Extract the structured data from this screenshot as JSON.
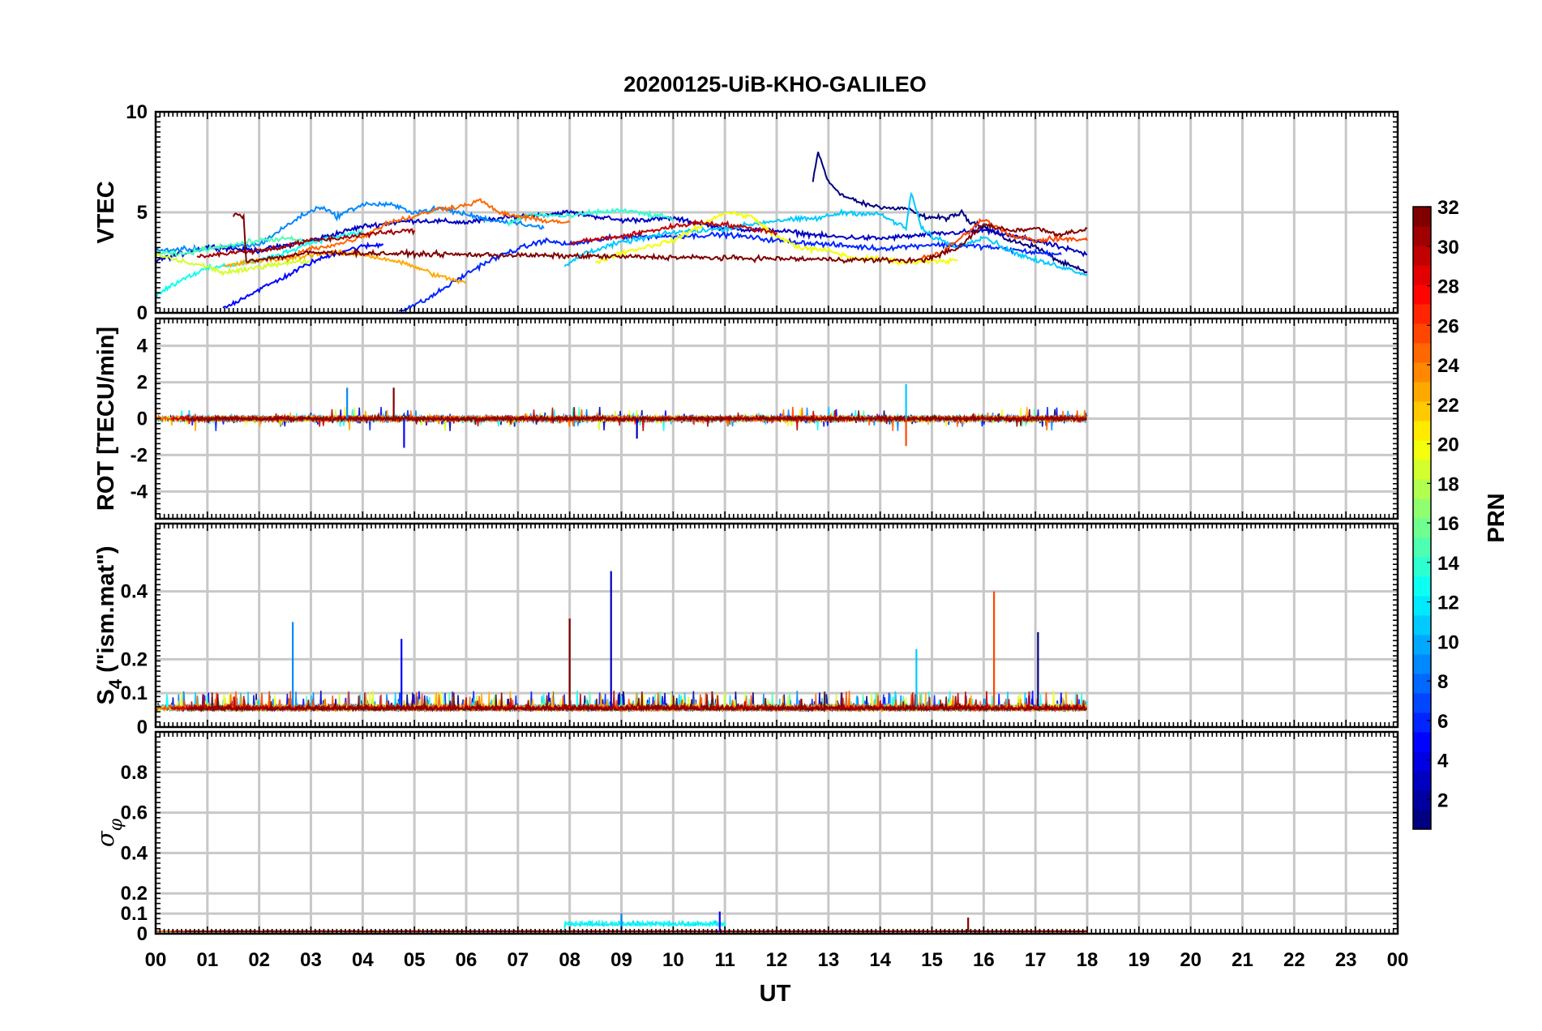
{
  "chart_data": {
    "type": "line",
    "title": "20200125-UiB-KHO-GALILEO",
    "xlabel": "UT",
    "x_ticks": [
      "00",
      "01",
      "02",
      "03",
      "04",
      "05",
      "06",
      "07",
      "08",
      "09",
      "10",
      "11",
      "12",
      "13",
      "14",
      "15",
      "16",
      "17",
      "18",
      "19",
      "20",
      "21",
      "22",
      "23",
      "00"
    ],
    "xlim_hours": [
      0,
      24
    ],
    "grid": true,
    "panels": [
      {
        "id": "vtec",
        "ylabel": "VTEC",
        "ylim": [
          0,
          10
        ],
        "yticks": [
          0,
          5,
          10
        ],
        "ytick_labels": [
          "0",
          "5",
          "10"
        ],
        "series_summary": [
          {
            "prn": 1,
            "x": [
              12.7,
              12.8,
              13.0,
              13.3,
              13.7,
              14.2,
              14.5,
              14.8,
              15.3,
              15.6,
              15.7,
              16.0,
              16.5,
              17.0,
              17.5,
              18.0
            ],
            "y": [
              6.5,
              8.0,
              6.5,
              5.8,
              5.4,
              5.2,
              5.2,
              4.8,
              4.7,
              5.0,
              4.6,
              4.3,
              3.6,
              3.3,
              2.5,
              2.0
            ]
          },
          {
            "prn": 3,
            "x": [
              0.0,
              0.6,
              1.0,
              2.0,
              3.0,
              4.0,
              5.0,
              6.0,
              7.0,
              8.0,
              9.0,
              10.0,
              11.0,
              12.0,
              13.0,
              14.0,
              15.0,
              16.0,
              17.0,
              18.0
            ],
            "y": [
              2.6,
              3.0,
              3.3,
              3.1,
              3.6,
              4.3,
              4.6,
              4.5,
              4.8,
              5.0,
              4.6,
              4.7,
              4.2,
              4.1,
              3.8,
              3.7,
              3.9,
              4.1,
              3.6,
              2.9
            ]
          },
          {
            "prn": 5,
            "x": [
              1.3,
              1.8,
              2.5,
              3.0,
              3.5,
              4.0,
              4.4
            ],
            "y": [
              0.2,
              0.9,
              1.8,
              2.5,
              3.0,
              3.3,
              3.4
            ]
          },
          {
            "prn": 6,
            "x": [
              4.7,
              5.2,
              5.8,
              6.3,
              6.8,
              7.5,
              8.0,
              9.0,
              10.0,
              11.0,
              12.0,
              13.0,
              14.0,
              15.0,
              16.0,
              17.0,
              17.5
            ],
            "y": [
              0.1,
              0.6,
              1.6,
              2.4,
              3.0,
              3.6,
              3.4,
              3.8,
              3.8,
              3.9,
              3.6,
              3.4,
              3.2,
              3.4,
              3.3,
              3.0,
              2.9
            ]
          },
          {
            "prn": 9,
            "x": [
              0.0,
              1.0,
              2.0,
              2.8,
              3.2,
              3.5,
              4.0,
              4.5,
              5.0,
              5.5,
              6.0,
              6.5,
              7.0,
              7.5
            ],
            "y": [
              3.1,
              3.2,
              3.4,
              4.8,
              5.3,
              4.8,
              5.4,
              5.4,
              5.0,
              5.2,
              4.9,
              4.6,
              4.5,
              4.2
            ]
          },
          {
            "prn": 11,
            "x": [
              7.9,
              8.3,
              9.0,
              10.0,
              11.0,
              12.0,
              12.8,
              13.3,
              14.0,
              14.5,
              14.6,
              14.8,
              15.0,
              15.5,
              16.0,
              16.5,
              17.0,
              17.5,
              18.0
            ],
            "y": [
              2.3,
              3.0,
              3.5,
              4.0,
              4.2,
              4.6,
              4.7,
              5.0,
              4.9,
              4.2,
              6.0,
              4.2,
              3.8,
              3.3,
              3.8,
              3.1,
              2.6,
              2.3,
              1.9
            ]
          },
          {
            "prn": 13,
            "x": [
              0.0,
              0.6,
              1.0,
              1.5,
              2.0,
              2.5,
              3.0,
              3.5,
              4.0
            ],
            "y": [
              0.9,
              1.8,
              2.2,
              2.4,
              2.6,
              3.0,
              3.5,
              3.8,
              4.0
            ]
          },
          {
            "prn": 14,
            "x": [
              6.8,
              7.2,
              8.0,
              8.5,
              9.0,
              9.5,
              10.0
            ],
            "y": [
              4.4,
              4.9,
              4.8,
              5.0,
              5.1,
              4.9,
              4.7
            ]
          },
          {
            "prn": 15,
            "x": [
              0.0,
              0.5,
              1.0,
              1.5,
              2.0,
              2.5,
              3.0
            ],
            "y": [
              3.0,
              2.9,
              3.2,
              3.4,
              3.6,
              3.7,
              3.5
            ]
          },
          {
            "prn": 19,
            "x": [
              0.0,
              0.6,
              1.0,
              1.3,
              1.7,
              2.2,
              3.0
            ],
            "y": [
              2.9,
              2.5,
              2.3,
              2.0,
              2.1,
              2.4,
              2.6
            ]
          },
          {
            "prn": 20,
            "x": [
              8.5,
              9.0,
              10.0,
              10.5,
              11.0,
              11.5,
              12.0,
              12.5,
              13.0,
              13.5,
              14.0,
              14.5,
              15.0,
              15.5
            ],
            "y": [
              2.5,
              3.0,
              3.6,
              4.3,
              5.0,
              4.8,
              3.8,
              3.2,
              3.1,
              2.7,
              2.7,
              2.5,
              2.6,
              2.6
            ]
          },
          {
            "prn": 23,
            "x": [
              1.3,
              2.0,
              2.6,
              3.0,
              3.4,
              4.0,
              4.6,
              5.0,
              5.5,
              6.0
            ],
            "y": [
              2.3,
              2.6,
              2.7,
              2.9,
              3.0,
              2.9,
              2.6,
              2.3,
              1.8,
              1.5
            ]
          },
          {
            "prn": 25,
            "x": [
              2.5,
              3.0,
              3.5,
              4.0,
              4.5,
              5.0,
              5.5,
              5.9,
              6.3,
              6.6,
              7.0,
              7.5,
              8.0
            ],
            "y": [
              2.7,
              3.2,
              3.4,
              3.8,
              4.5,
              4.8,
              5.2,
              5.3,
              5.6,
              5.0,
              4.8,
              4.6,
              4.5
            ]
          },
          {
            "prn": 26,
            "x": [
              14.8,
              15.2,
              15.6,
              16.0,
              16.3,
              16.6,
              17.0,
              17.5,
              18.0
            ],
            "y": [
              2.7,
              3.0,
              3.8,
              4.7,
              4.2,
              3.8,
              3.6,
              3.7,
              3.6
            ]
          },
          {
            "prn": 30,
            "x": [
              8.0,
              9.0,
              10.0,
              10.5,
              11.0,
              11.5,
              12.0
            ],
            "y": [
              3.5,
              3.8,
              4.3,
              4.5,
              4.4,
              4.2,
              4.0
            ]
          },
          {
            "prn": 31,
            "x": [
              0.8,
              1.5,
              2.0,
              2.5,
              3.0,
              3.5,
              4.0,
              4.5,
              5.0
            ],
            "y": [
              2.8,
              3.0,
              3.1,
              3.3,
              3.6,
              3.7,
              3.9,
              4.0,
              4.1
            ]
          },
          {
            "prn": 32,
            "x": [
              1.5,
              1.7,
              1.75,
              1.8,
              2.5,
              3.0,
              14.8,
              15.5,
              16.0,
              16.5,
              17.0,
              17.5,
              18.0
            ],
            "y": [
              4.9,
              4.8,
              2.6,
              2.6,
              2.8,
              3.0,
              2.6,
              3.2,
              4.4,
              4.1,
              4.2,
              3.9,
              4.2
            ]
          }
        ]
      },
      {
        "id": "rot",
        "ylabel": "ROT [TECU/min]",
        "ylim": [
          -5.5,
          5.5
        ],
        "yticks": [
          -4,
          -2,
          0,
          2,
          4
        ],
        "ytick_labels": [
          "-4",
          "-2",
          "0",
          "2",
          "4"
        ],
        "x_coverage_hours": [
          0,
          18
        ],
        "notable_peaks": [
          {
            "x": 3.7,
            "y": 1.7
          },
          {
            "x": 4.8,
            "y": -1.6
          },
          {
            "x": 4.6,
            "y": 1.7
          },
          {
            "x": 9.3,
            "y": -1.1
          },
          {
            "x": 14.5,
            "y": 1.9
          },
          {
            "x": 14.5,
            "y": -1.5
          }
        ]
      },
      {
        "id": "s4",
        "ylabel": "S4 (\"ism.mat\")",
        "ylabel_main": "S",
        "ylabel_sub": "4",
        "ylabel_rest": " (\"ism.mat\")",
        "ylim": [
          0,
          0.6
        ],
        "yticks": [
          0,
          0.1,
          0.2,
          0.4
        ],
        "ytick_labels": [
          "0",
          "0.1",
          "0.2",
          "0.4"
        ],
        "x_coverage_hours": [
          0,
          18
        ],
        "notable_peaks": [
          {
            "x": 2.65,
            "y": 0.31
          },
          {
            "x": 4.75,
            "y": 0.26
          },
          {
            "x": 8.0,
            "y": 0.32
          },
          {
            "x": 8.8,
            "y": 0.46
          },
          {
            "x": 14.7,
            "y": 0.23
          },
          {
            "x": 16.2,
            "y": 0.4
          },
          {
            "x": 17.05,
            "y": 0.28
          }
        ]
      },
      {
        "id": "sigma_phi",
        "ylabel": "σ φ",
        "ylabel_main": "σ",
        "ylabel_sub": "φ",
        "ylim": [
          0,
          1
        ],
        "yticks": [
          0,
          0.1,
          0.2,
          0.4,
          0.6,
          0.8
        ],
        "ytick_labels": [
          "0",
          "0.1",
          "0.2",
          "0.4",
          "0.6",
          "0.8"
        ],
        "x_coverage_hours": [
          0,
          18
        ],
        "notable_peaks": [
          {
            "x": 9.0,
            "y": 0.1
          },
          {
            "x": 10.9,
            "y": 0.11
          },
          {
            "x": 15.7,
            "y": 0.08
          }
        ]
      }
    ],
    "colorbar": {
      "label": "PRN",
      "colormap": "jet",
      "range": [
        1,
        32
      ],
      "ticks": [
        2,
        4,
        6,
        8,
        10,
        12,
        14,
        16,
        18,
        20,
        22,
        24,
        26,
        28,
        30,
        32
      ],
      "tick_labels": [
        "2",
        "4",
        "6",
        "8",
        "10",
        "12",
        "14",
        "16",
        "18",
        "20",
        "22",
        "24",
        "26",
        "28",
        "30",
        "32"
      ]
    }
  }
}
